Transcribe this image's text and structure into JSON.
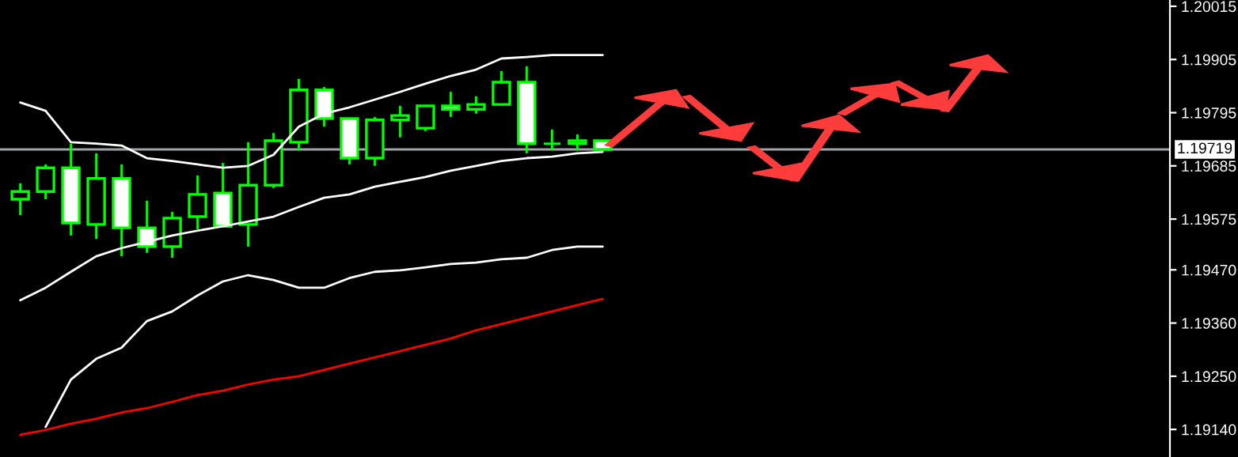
{
  "chart_data": {
    "type": "candlestick",
    "categories": [
      null,
      null,
      null,
      null,
      null,
      null,
      null,
      null,
      null,
      null,
      null,
      null,
      null,
      null,
      null,
      null,
      null,
      null,
      null,
      null,
      null,
      null,
      null,
      null,
      null,
      null,
      null,
      null,
      null,
      null,
      null,
      null,
      null,
      null,
      null,
      null,
      null,
      null,
      null,
      null,
      null,
      null,
      null,
      null,
      null,
      null
    ],
    "color": "#00ff00",
    "ohlc": [
      [
        1.19616,
        1.19649,
        1.19583,
        1.19632
      ],
      [
        1.19632,
        1.19688,
        1.19616,
        1.19681
      ],
      [
        1.19681,
        1.19731,
        1.19541,
        1.19567
      ],
      [
        1.19564,
        1.19711,
        1.19534,
        1.19659
      ],
      [
        1.19659,
        1.19688,
        1.19498,
        1.19557
      ],
      [
        1.19557,
        1.19613,
        1.19505,
        1.19518
      ],
      [
        1.19518,
        1.1959,
        1.19495,
        1.19577
      ],
      [
        1.1958,
        1.19665,
        1.19554,
        1.19626
      ],
      [
        1.19629,
        1.19691,
        1.19557,
        1.1956
      ],
      [
        1.19564,
        1.19734,
        1.19518,
        1.19645
      ],
      [
        1.19645,
        1.19753,
        1.19639,
        1.19737
      ],
      [
        1.19734,
        1.19865,
        1.19717,
        1.19842
      ],
      [
        1.19842,
        1.19848,
        1.19766,
        1.19783
      ],
      [
        1.19783,
        1.19783,
        1.19688,
        1.19701
      ],
      [
        1.19701,
        1.19786,
        1.19685,
        1.1978
      ],
      [
        1.1978,
        1.19809,
        1.19744,
        1.19789
      ],
      [
        1.19763,
        1.19809,
        1.19757,
        1.19809
      ],
      [
        1.19809,
        1.19838,
        1.19786,
        1.19802
      ],
      [
        1.19802,
        1.19829,
        1.19793,
        1.19812
      ],
      [
        1.19812,
        1.19881,
        1.19812,
        1.19858
      ],
      [
        1.19858,
        1.19891,
        1.19711,
        1.19731
      ],
      [
        1.19731,
        1.1976,
        1.19717,
        1.19731
      ],
      [
        1.19731,
        1.1975,
        1.19717,
        1.19737
      ],
      [
        1.19737,
        1.19737,
        1.19719,
        1.19719
      ],
      null,
      null,
      null,
      null,
      null,
      null,
      null,
      null,
      null,
      null,
      null,
      null,
      null,
      null,
      null,
      null,
      null,
      null,
      null,
      null,
      null,
      null
    ],
    "series": [
      {
        "type": "line",
        "color": "#ffffff",
        "values": [
          1.19816,
          1.19799,
          1.19734,
          1.19731,
          1.19727,
          1.19701,
          1.19695,
          1.19688,
          1.19681,
          1.19685,
          1.19708,
          1.19766,
          1.19793,
          1.19806,
          1.19822,
          1.19838,
          1.19855,
          1.19871,
          1.19884,
          1.19907,
          1.1991,
          1.19914,
          1.19914,
          1.19914,
          null,
          null,
          null,
          null,
          null,
          null,
          null,
          null,
          null,
          null,
          null,
          null,
          null,
          null,
          null,
          null,
          null,
          null,
          null,
          null,
          null,
          null
        ]
      },
      {
        "type": "line",
        "color": "#fefefe",
        "values": [
          1.19407,
          1.19433,
          1.19466,
          1.19498,
          1.19515,
          1.19528,
          1.19541,
          1.19551,
          1.1956,
          1.1957,
          1.1958,
          1.196,
          1.19619,
          1.19626,
          1.19642,
          1.19652,
          1.19662,
          1.19675,
          1.19685,
          1.19695,
          1.19701,
          1.19704,
          1.19711,
          1.19714,
          null,
          null,
          null,
          null,
          null,
          null,
          null,
          null,
          null,
          null,
          null,
          null,
          null,
          null,
          null,
          null,
          null,
          null,
          null,
          null,
          null,
          null
        ]
      },
      {
        "type": "line",
        "color": "#fdfdfd",
        "values": [
          null,
          1.19145,
          1.19243,
          1.19286,
          1.19309,
          1.19364,
          1.19384,
          1.19417,
          1.19446,
          1.19459,
          1.19449,
          1.19433,
          1.19433,
          1.19453,
          1.19466,
          1.19469,
          1.19475,
          1.19482,
          1.19485,
          1.19492,
          1.19495,
          1.19511,
          1.19518,
          1.19518,
          null,
          null,
          null,
          null,
          null,
          null,
          null,
          null,
          null,
          null,
          null,
          null,
          null,
          null,
          null,
          null,
          null,
          null,
          null,
          null,
          null,
          null
        ]
      },
      {
        "type": "line",
        "color": "#ff0000",
        "values": [
          1.19129,
          1.19139,
          1.19152,
          1.19162,
          1.19175,
          1.19184,
          1.19197,
          1.19211,
          1.1922,
          1.19233,
          1.19243,
          1.1925,
          1.19263,
          1.19276,
          1.19289,
          1.19302,
          1.19315,
          1.19328,
          1.19345,
          1.19358,
          1.19371,
          1.19384,
          1.19397,
          1.1941,
          null,
          null,
          null,
          null,
          null,
          null,
          null,
          null,
          null,
          null,
          null,
          null,
          null,
          null,
          null,
          null,
          null,
          null,
          null,
          null,
          null,
          null
        ]
      }
    ],
    "ylim": [
      1.19083,
      1.20028
    ],
    "yticks": [
      {
        "value": 1.1914,
        "label": "1.19140"
      },
      {
        "value": 1.1925,
        "label": "1.19250"
      },
      {
        "value": 1.1936,
        "label": "1.19360"
      },
      {
        "value": 1.1947,
        "label": "1.19470"
      },
      1.19575,
      1.19685,
      1.19795,
      1.19905,
      1.20015
    ],
    "ref_lines": [
      {
        "axis": "y",
        "value": 1.19719,
        "label": "1.19719",
        "color": "#a0a4aa"
      }
    ],
    "tick_labels": "y",
    "grid": false,
    "legend": false
  }
}
